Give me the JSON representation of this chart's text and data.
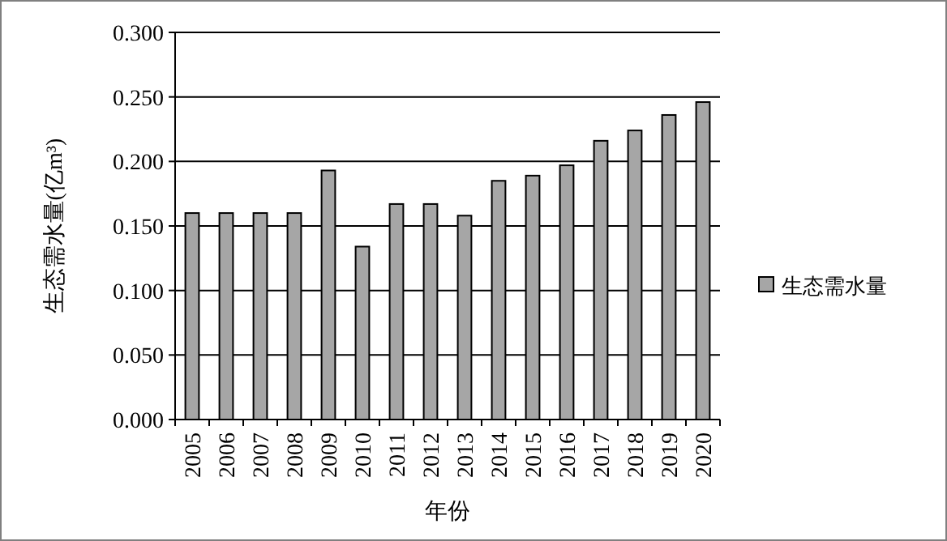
{
  "chart_data": {
    "type": "bar",
    "xlabel": "年份",
    "ylabel": "生态需水量(亿m³)",
    "categories": [
      "2005",
      "2006",
      "2007",
      "2008",
      "2009",
      "2010",
      "2011",
      "2012",
      "2013",
      "2014",
      "2015",
      "2016",
      "2017",
      "2018",
      "2019",
      "2020"
    ],
    "series": [
      {
        "name": "生态需水量",
        "color": "#a6a6a6",
        "values": [
          0.16,
          0.16,
          0.16,
          0.16,
          0.193,
          0.134,
          0.167,
          0.167,
          0.158,
          0.185,
          0.189,
          0.197,
          0.216,
          0.224,
          0.236,
          0.246
        ]
      }
    ],
    "ylim": [
      0,
      0.3
    ],
    "yticks": [
      {
        "value": 0,
        "label": "0.000"
      },
      {
        "value": 0.05,
        "label": "0.050"
      },
      {
        "value": 0.1,
        "label": "0.100"
      },
      {
        "value": 0.15,
        "label": "0.150"
      },
      {
        "value": 0.2,
        "label": "0.200"
      },
      {
        "value": 0.25,
        "label": "0.250"
      },
      {
        "value": 0.3,
        "label": "0.300"
      }
    ],
    "grid": "y",
    "legend": "right"
  }
}
